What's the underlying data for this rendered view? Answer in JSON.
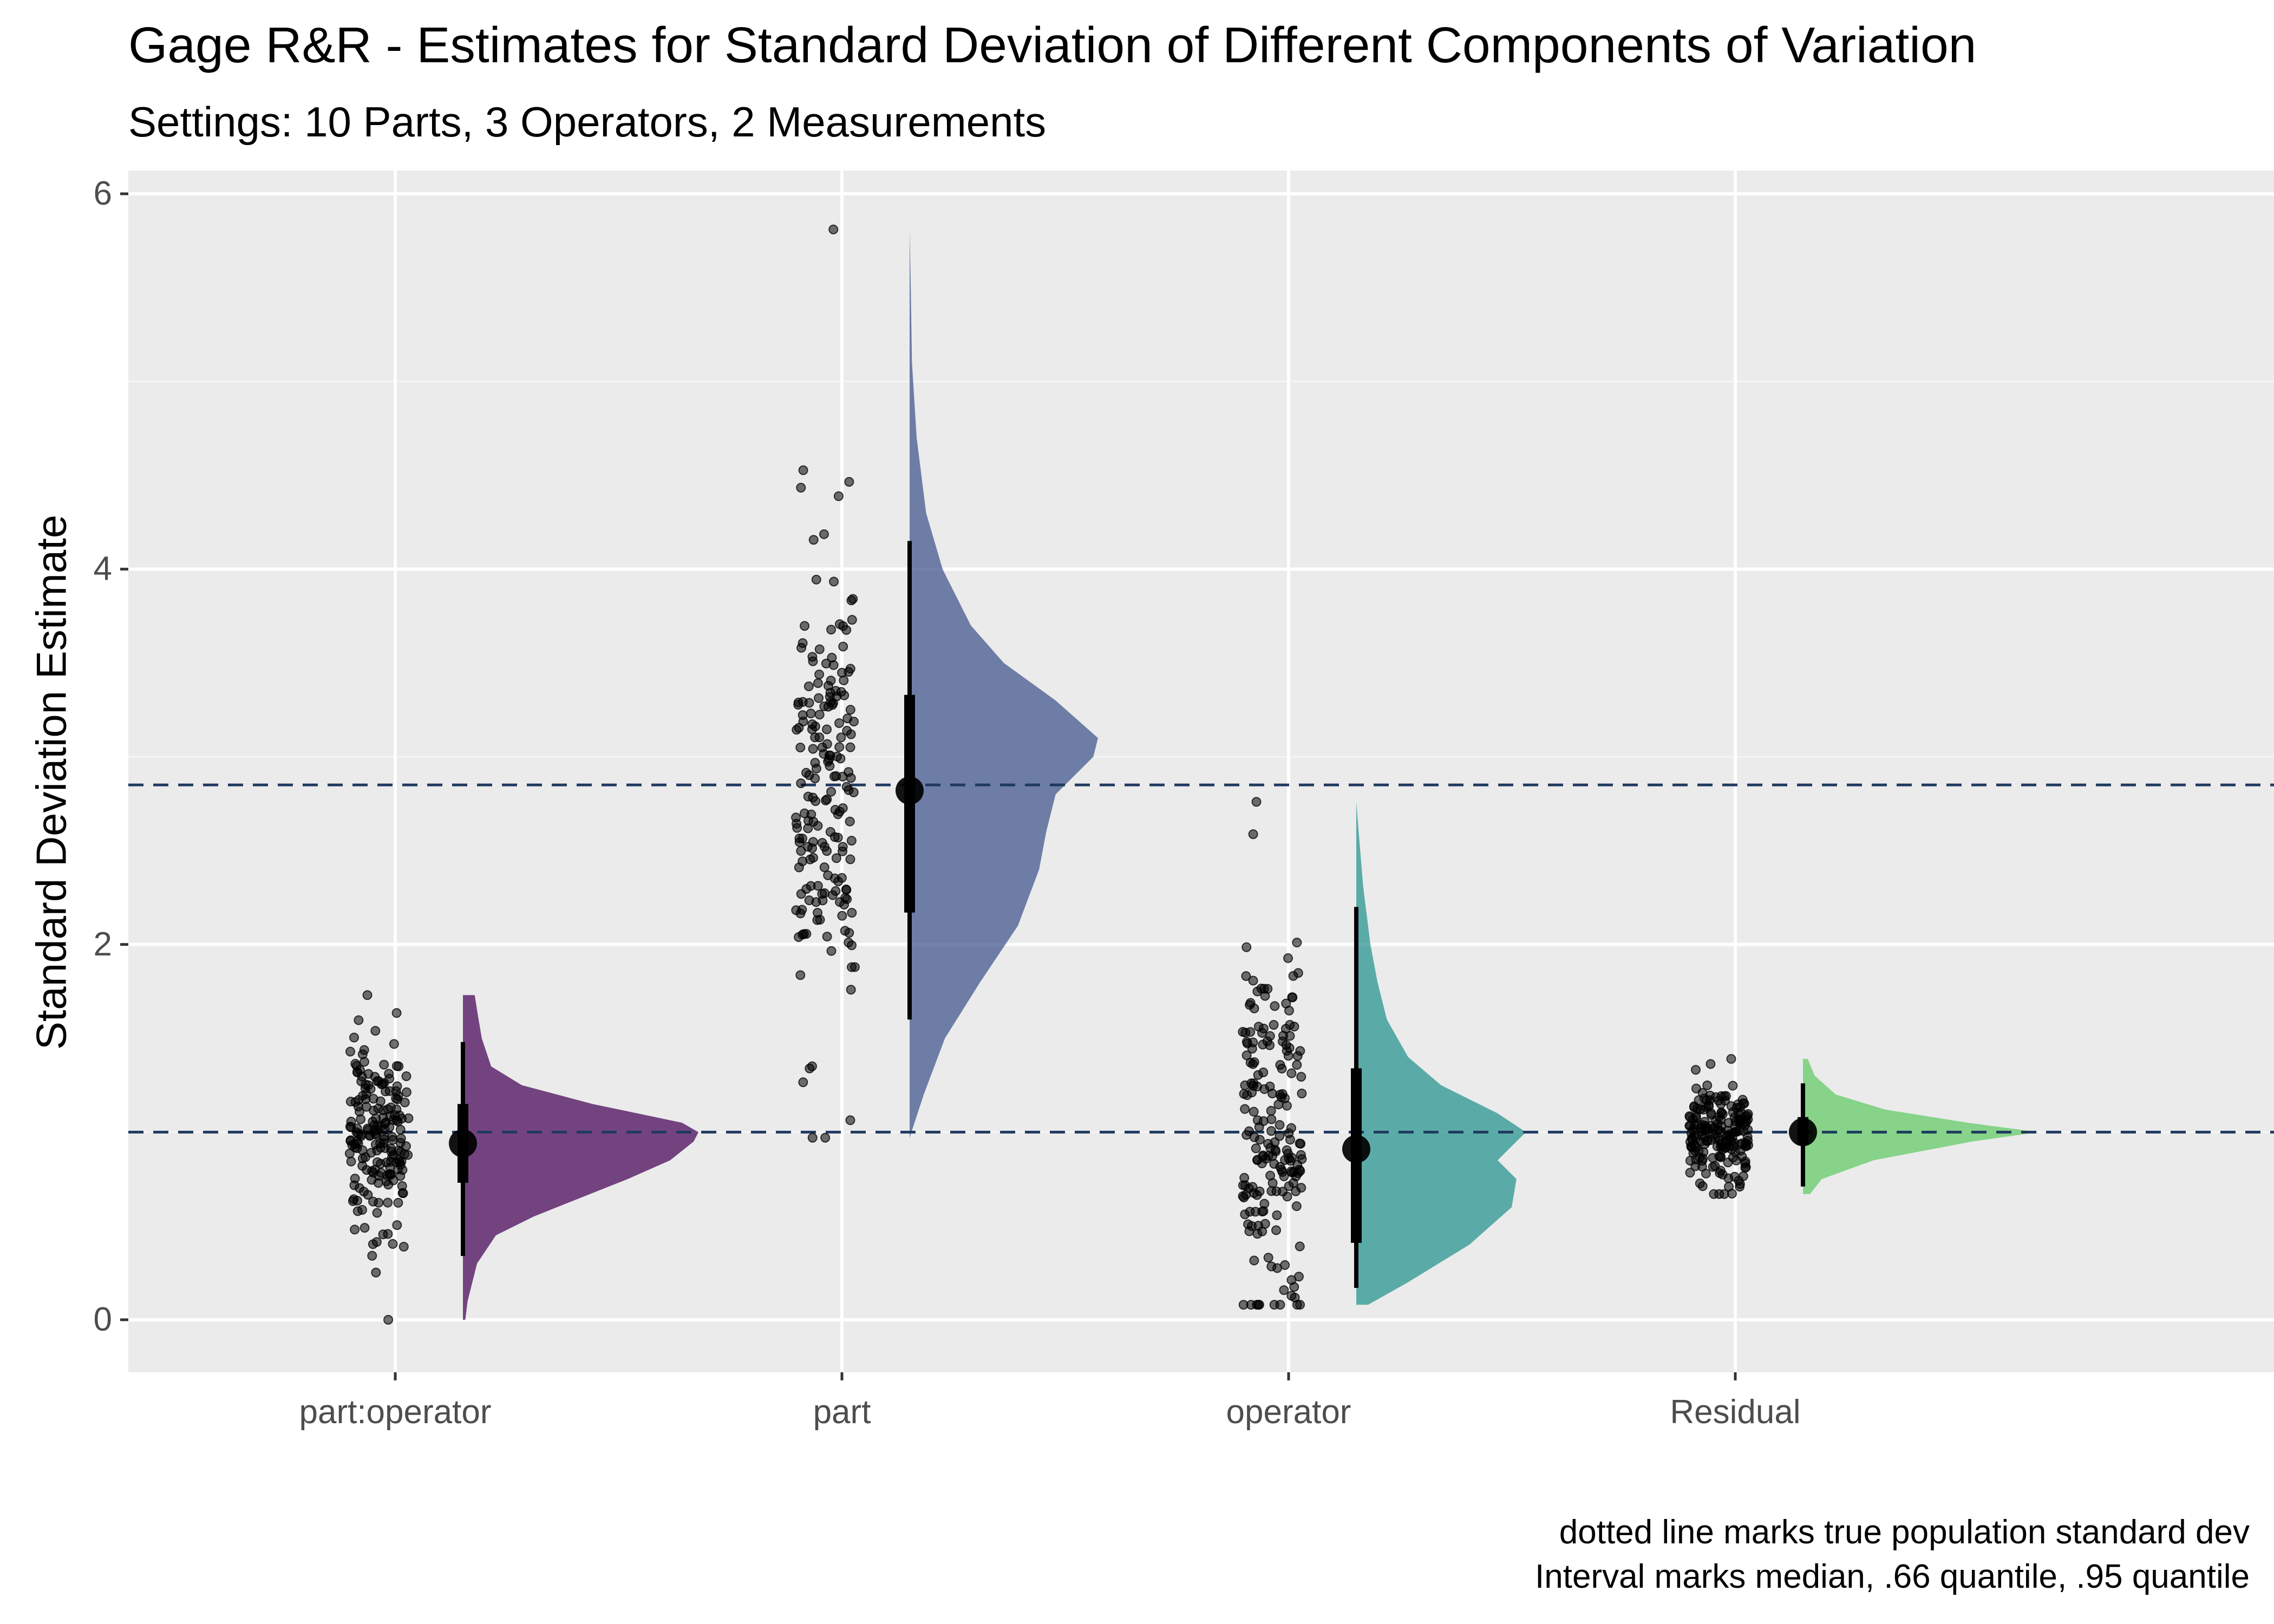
{
  "chart_data": {
    "type": "raincloud",
    "title": "Gage R&R - Estimates for Standard Deviation of Different Components of Variation",
    "subtitle": "Settings: 10 Parts, 3 Operators, 2 Measurements",
    "xlabel": "",
    "ylabel": "Standard Deviation Estimate",
    "ylim": [
      -0.28,
      6.1
    ],
    "y_ticks": [
      0,
      2,
      4,
      6
    ],
    "categories": [
      "part:operator",
      "part",
      "operator",
      "Residual"
    ],
    "grid": true,
    "reference_lines": [
      1.0,
      2.85
    ],
    "caption": [
      "dotted line marks true population standard dev",
      "Interval marks median, .66 quantile, .95 quantile"
    ],
    "series": [
      {
        "category": "part:operator",
        "color": "#440154",
        "median": 0.94,
        "q66": [
          0.73,
          1.15
        ],
        "q95": [
          0.34,
          1.48
        ],
        "range": [
          0.0,
          1.73
        ],
        "density": [
          [
            0.0,
            0.01
          ],
          [
            0.1,
            0.02
          ],
          [
            0.3,
            0.06
          ],
          [
            0.45,
            0.14
          ],
          [
            0.55,
            0.3
          ],
          [
            0.65,
            0.5
          ],
          [
            0.75,
            0.7
          ],
          [
            0.85,
            0.88
          ],
          [
            0.95,
            0.98
          ],
          [
            1.0,
            1.0
          ],
          [
            1.05,
            0.93
          ],
          [
            1.15,
            0.55
          ],
          [
            1.25,
            0.25
          ],
          [
            1.35,
            0.12
          ],
          [
            1.5,
            0.08
          ],
          [
            1.65,
            0.06
          ],
          [
            1.73,
            0.05
          ]
        ],
        "points": {
          "n": 190,
          "mean": 0.96,
          "sd": 0.27,
          "min": 0.0,
          "max": 1.73
        }
      },
      {
        "category": "part",
        "color": "#3b528b",
        "median": 2.82,
        "q66": [
          2.17,
          3.33
        ],
        "q95": [
          1.6,
          4.15
        ],
        "range": [
          0.97,
          5.81
        ],
        "density": [
          [
            0.97,
            0.0
          ],
          [
            1.2,
            0.06
          ],
          [
            1.5,
            0.15
          ],
          [
            1.8,
            0.3
          ],
          [
            2.1,
            0.46
          ],
          [
            2.4,
            0.55
          ],
          [
            2.6,
            0.58
          ],
          [
            2.8,
            0.62
          ],
          [
            3.0,
            0.78
          ],
          [
            3.1,
            0.8
          ],
          [
            3.3,
            0.62
          ],
          [
            3.5,
            0.4
          ],
          [
            3.7,
            0.26
          ],
          [
            4.0,
            0.14
          ],
          [
            4.3,
            0.07
          ],
          [
            4.7,
            0.03
          ],
          [
            5.1,
            0.01
          ],
          [
            5.5,
            0.005
          ],
          [
            5.81,
            0.0
          ]
        ],
        "points": {
          "n": 190,
          "mean": 2.8,
          "sd": 0.6,
          "min": 0.97,
          "max": 5.81
        }
      },
      {
        "category": "operator",
        "color": "#21918c",
        "median": 0.91,
        "q66": [
          0.41,
          1.34
        ],
        "q95": [
          0.17,
          2.2
        ],
        "range": [
          0.08,
          2.76
        ],
        "density": [
          [
            0.08,
            0.05
          ],
          [
            0.2,
            0.22
          ],
          [
            0.4,
            0.48
          ],
          [
            0.6,
            0.66
          ],
          [
            0.75,
            0.68
          ],
          [
            0.85,
            0.6
          ],
          [
            1.0,
            0.72
          ],
          [
            1.1,
            0.6
          ],
          [
            1.25,
            0.36
          ],
          [
            1.4,
            0.22
          ],
          [
            1.6,
            0.13
          ],
          [
            1.8,
            0.09
          ],
          [
            2.0,
            0.06
          ],
          [
            2.3,
            0.03
          ],
          [
            2.6,
            0.01
          ],
          [
            2.76,
            0.0
          ]
        ],
        "points": {
          "n": 190,
          "mean": 0.95,
          "sd": 0.5,
          "min": 0.08,
          "max": 2.76
        }
      },
      {
        "category": "Residual",
        "color": "#5ec962",
        "median": 1.0,
        "q66": [
          0.93,
          1.08
        ],
        "q95": [
          0.71,
          1.26
        ],
        "range": [
          0.67,
          1.39
        ],
        "density": [
          [
            0.67,
            0.03
          ],
          [
            0.75,
            0.08
          ],
          [
            0.85,
            0.3
          ],
          [
            0.95,
            0.72
          ],
          [
            1.0,
            1.0
          ],
          [
            1.05,
            0.7
          ],
          [
            1.12,
            0.35
          ],
          [
            1.2,
            0.14
          ],
          [
            1.3,
            0.05
          ],
          [
            1.39,
            0.02
          ]
        ],
        "points": {
          "n": 190,
          "mean": 1.0,
          "sd": 0.13,
          "min": 0.67,
          "max": 1.39
        }
      }
    ]
  }
}
